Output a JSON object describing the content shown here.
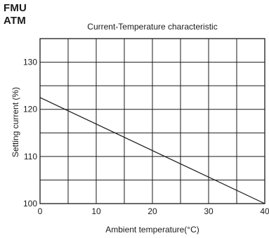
{
  "header": {
    "brand_line1": "FMU",
    "brand_line2": "ATM"
  },
  "chart_data": {
    "type": "line",
    "title": "Current-Temperature characteristic",
    "xlabel": "Ambient temperature(°C)",
    "ylabel": "Setting current (%)",
    "xlim": [
      0,
      40
    ],
    "ylim": [
      100,
      135
    ],
    "x_ticks": [
      0,
      10,
      20,
      30,
      40
    ],
    "y_ticks": [
      100,
      110,
      120,
      130
    ],
    "grid": true,
    "grid_x_step": 5,
    "grid_y_step": 5,
    "series": [
      {
        "x": [
          0,
          40
        ],
        "values": [
          122.5,
          100
        ]
      }
    ],
    "colors": {
      "line": "#1a1a1a",
      "grid": "#1a1a1a"
    }
  }
}
